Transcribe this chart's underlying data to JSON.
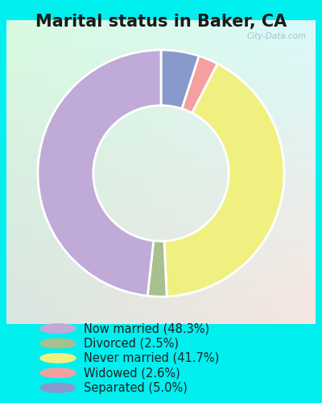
{
  "title": "Marital status in Baker, CA",
  "title_fontsize": 15,
  "title_fontweight": "bold",
  "background_color": "#00efef",
  "chart_bg": "#d4ede2",
  "watermark": "City-Data.com",
  "slices": [
    {
      "label": "Now married (48.3%)",
      "value": 48.3,
      "color": "#c0aad8"
    },
    {
      "label": "Divorced (2.5%)",
      "value": 2.5,
      "color": "#a8bf90"
    },
    {
      "label": "Never married (41.7%)",
      "value": 41.7,
      "color": "#f0f080"
    },
    {
      "label": "Widowed (2.6%)",
      "value": 2.6,
      "color": "#f4a0a0"
    },
    {
      "label": "Separated (5.0%)",
      "value": 5.0,
      "color": "#8899cc"
    }
  ],
  "donut_width": 0.45,
  "legend_fontsize": 10.5,
  "figsize": [
    4.0,
    5.0
  ],
  "dpi": 100,
  "start_angle": 90,
  "wedge_order": [
    4,
    3,
    2,
    1,
    0
  ]
}
